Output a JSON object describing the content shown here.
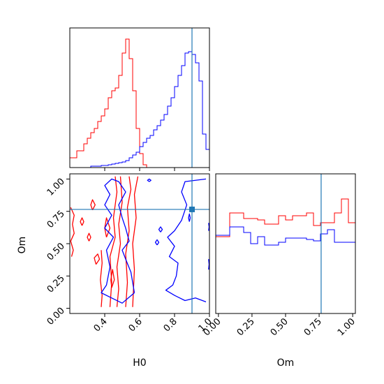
{
  "chart_data": {
    "type": "corner",
    "parameters": [
      "H0",
      "Om"
    ],
    "truth": {
      "H0": 0.9,
      "Om": 0.765
    },
    "colors": {
      "red": "#ff0000",
      "blue": "#0000ff",
      "truth": "#1f77b4",
      "frame": "#000000"
    },
    "hist_H0": {
      "range": [
        0.2,
        1.0
      ],
      "bins": 40,
      "red": [
        0.07,
        0.07,
        0.12,
        0.12,
        0.17,
        0.21,
        0.25,
        0.28,
        0.33,
        0.37,
        0.42,
        0.5,
        0.55,
        0.57,
        0.66,
        0.82,
        0.92,
        0.78,
        0.55,
        0.28,
        0.1,
        0.02,
        0,
        0,
        0,
        0,
        0,
        0,
        0,
        0,
        0,
        0,
        0,
        0,
        0,
        0,
        0,
        0,
        0,
        0
      ],
      "blue": [
        0,
        0,
        0,
        0,
        0,
        0,
        0.01,
        0.01,
        0.01,
        0.015,
        0.015,
        0.02,
        0.025,
        0.03,
        0.035,
        0.04,
        0.05,
        0.07,
        0.09,
        0.11,
        0.15,
        0.18,
        0.21,
        0.23,
        0.27,
        0.3,
        0.34,
        0.38,
        0.44,
        0.5,
        0.58,
        0.66,
        0.73,
        0.82,
        0.83,
        0.81,
        0.75,
        0.62,
        0.24,
        0.13
      ]
    },
    "hist_Om": {
      "range": [
        -0.02,
        1.02
      ],
      "bins": 20,
      "red": [
        0.55,
        0.55,
        0.72,
        0.72,
        0.68,
        0.68,
        0.67,
        0.64,
        0.64,
        0.7,
        0.67,
        0.7,
        0.7,
        0.72,
        0.63,
        0.65,
        0.65,
        0.72,
        0.82,
        0.65
      ],
      "blue": [
        0.56,
        0.56,
        0.62,
        0.62,
        0.58,
        0.5,
        0.55,
        0.49,
        0.49,
        0.51,
        0.54,
        0.54,
        0.54,
        0.53,
        0.52,
        0.57,
        0.6,
        0.51,
        0.51,
        0.51
      ],
      "end_values": {
        "red_right": 0.04,
        "blue_left": 0.04,
        "blue_right": 0.04
      }
    },
    "contours": {
      "red": [
        [
          [
            0.205,
            0.78
          ],
          [
            0.225,
            0.72
          ],
          [
            0.215,
            0.65
          ],
          [
            0.225,
            0.58
          ],
          [
            0.205,
            0.52
          ],
          [
            0.22,
            0.45
          ],
          [
            0.21,
            0.4
          ]
        ],
        [
          [
            0.43,
            0.01
          ],
          [
            0.44,
            0.2
          ],
          [
            0.43,
            0.4
          ],
          [
            0.46,
            0.55
          ],
          [
            0.45,
            0.7
          ],
          [
            0.47,
            0.9
          ],
          [
            0.46,
            1.02
          ]
        ],
        [
          [
            0.47,
            0.01
          ],
          [
            0.48,
            0.15
          ],
          [
            0.47,
            0.32
          ],
          [
            0.49,
            0.5
          ],
          [
            0.48,
            0.65
          ],
          [
            0.5,
            0.82
          ],
          [
            0.49,
            1.02
          ]
        ],
        [
          [
            0.52,
            0.01
          ],
          [
            0.53,
            0.2
          ],
          [
            0.52,
            0.42
          ],
          [
            0.54,
            0.6
          ],
          [
            0.53,
            0.78
          ],
          [
            0.55,
            0.92
          ],
          [
            0.54,
            1.02
          ]
        ],
        [
          [
            0.56,
            0.01
          ],
          [
            0.57,
            0.3
          ],
          [
            0.56,
            0.5
          ],
          [
            0.58,
            0.7
          ],
          [
            0.57,
            0.88
          ],
          [
            0.59,
            1.02
          ]
        ],
        [
          [
            0.38,
            0.01
          ],
          [
            0.385,
            0.1
          ],
          [
            0.375,
            0.22
          ],
          [
            0.385,
            0.35
          ],
          [
            0.38,
            0.45
          ]
        ],
        [
          [
            0.35,
            0.34
          ],
          [
            0.37,
            0.38
          ],
          [
            0.36,
            0.42
          ],
          [
            0.34,
            0.39
          ],
          [
            0.35,
            0.34
          ]
        ],
        [
          [
            0.41,
            0.55
          ],
          [
            0.43,
            0.62
          ],
          [
            0.41,
            0.7
          ],
          [
            0.4,
            0.62
          ],
          [
            0.41,
            0.55
          ]
        ],
        [
          [
            0.44,
            0.16
          ],
          [
            0.455,
            0.22
          ],
          [
            0.445,
            0.3
          ],
          [
            0.435,
            0.22
          ],
          [
            0.44,
            0.16
          ]
        ],
        [
          [
            0.27,
            0.64
          ],
          [
            0.28,
            0.67
          ],
          [
            0.27,
            0.7
          ],
          [
            0.26,
            0.67
          ],
          [
            0.27,
            0.64
          ]
        ],
        [
          [
            0.33,
            0.76
          ],
          [
            0.345,
            0.8
          ],
          [
            0.33,
            0.84
          ],
          [
            0.32,
            0.8
          ],
          [
            0.33,
            0.76
          ]
        ],
        [
          [
            0.31,
            0.52
          ],
          [
            0.32,
            0.55
          ],
          [
            0.31,
            0.58
          ],
          [
            0.3,
            0.55
          ],
          [
            0.31,
            0.52
          ]
        ]
      ],
      "blue": [
        [
          [
            0.57,
            0.12
          ],
          [
            0.55,
            0.28
          ],
          [
            0.52,
            0.38
          ],
          [
            0.5,
            0.45
          ],
          [
            0.54,
            0.52
          ],
          [
            0.52,
            0.62
          ],
          [
            0.5,
            0.7
          ],
          [
            0.48,
            0.8
          ],
          [
            0.52,
            0.9
          ],
          [
            0.48,
            0.98
          ],
          [
            0.44,
            1.0
          ],
          [
            0.4,
            0.95
          ],
          [
            0.43,
            0.88
          ],
          [
            0.4,
            0.8
          ],
          [
            0.44,
            0.72
          ],
          [
            0.4,
            0.62
          ],
          [
            0.45,
            0.55
          ],
          [
            0.41,
            0.45
          ],
          [
            0.43,
            0.32
          ],
          [
            0.41,
            0.18
          ],
          [
            0.38,
            0.12
          ],
          [
            0.44,
            0.08
          ],
          [
            0.5,
            0.04
          ],
          [
            0.57,
            0.12
          ]
        ],
        [
          [
            0.98,
            1.0
          ],
          [
            0.86,
            0.98
          ],
          [
            0.84,
            0.9
          ],
          [
            0.87,
            0.8
          ],
          [
            0.84,
            0.68
          ],
          [
            0.8,
            0.6
          ],
          [
            0.76,
            0.55
          ],
          [
            0.8,
            0.48
          ],
          [
            0.77,
            0.4
          ],
          [
            0.82,
            0.35
          ],
          [
            0.81,
            0.25
          ],
          [
            0.79,
            0.18
          ],
          [
            0.75,
            0.14
          ],
          [
            0.8,
            0.1
          ],
          [
            0.86,
            0.06
          ],
          [
            0.92,
            0.08
          ],
          [
            0.98,
            0.05
          ]
        ],
        [
          [
            0.655,
            0.98
          ],
          [
            0.665,
            0.99
          ],
          [
            0.655,
            1.0
          ],
          [
            0.645,
            0.99
          ],
          [
            0.655,
            0.98
          ]
        ],
        [
          [
            0.7,
            0.49
          ],
          [
            0.71,
            0.51
          ],
          [
            0.7,
            0.53
          ],
          [
            0.69,
            0.51
          ],
          [
            0.7,
            0.49
          ]
        ],
        [
          [
            0.72,
            0.59
          ],
          [
            0.73,
            0.61
          ],
          [
            0.72,
            0.63
          ],
          [
            0.71,
            0.61
          ],
          [
            0.72,
            0.59
          ]
        ],
        [
          [
            0.885,
            0.67
          ],
          [
            0.89,
            0.7
          ],
          [
            0.885,
            0.73
          ],
          [
            0.88,
            0.7
          ],
          [
            0.885,
            0.67
          ]
        ],
        [
          [
            0.995,
            0.3
          ],
          [
            0.998,
            0.34
          ],
          [
            0.995,
            0.38
          ]
        ],
        [
          [
            0.995,
            0.6
          ],
          [
            0.998,
            0.63
          ],
          [
            0.995,
            0.66
          ]
        ]
      ]
    },
    "ticks": {
      "H0": [
        0.4,
        0.6,
        0.8,
        1.0
      ],
      "H0_labels": [
        "0.4",
        "0.6",
        "0.8",
        "1.0"
      ],
      "Om": [
        0.0,
        0.25,
        0.5,
        0.75,
        1.0
      ],
      "Om_labels": [
        "0.00",
        "0.25",
        "0.50",
        "0.75",
        "1.00"
      ]
    },
    "labels": {
      "x_main": "H0",
      "y_main": "Om",
      "x_right": "Om"
    }
  }
}
